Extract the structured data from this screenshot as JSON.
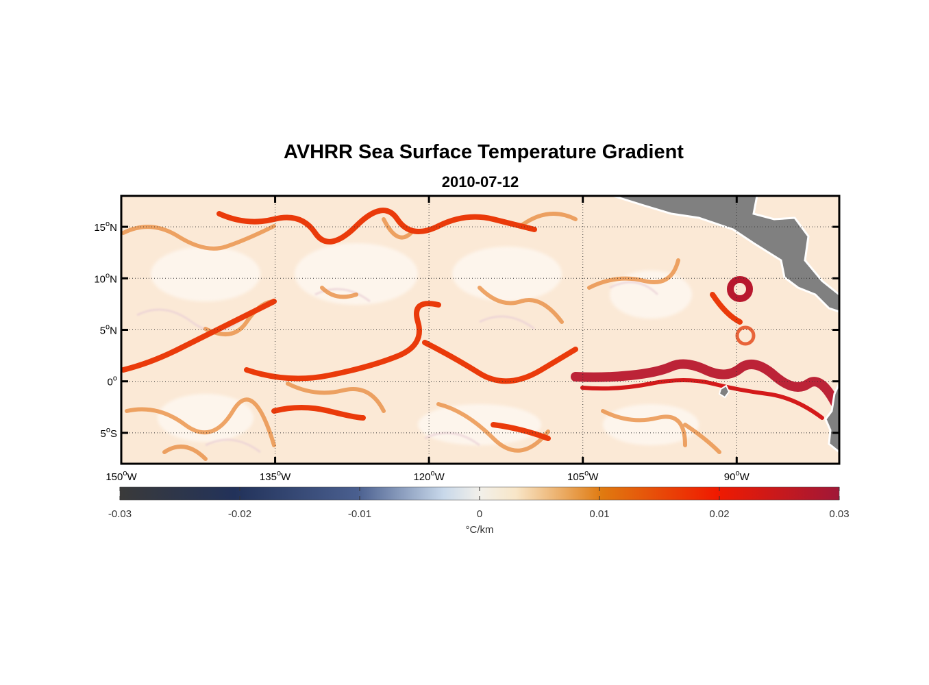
{
  "title": "AVHRR Sea Surface Temperature Gradient",
  "subtitle": "2010-07-12",
  "map": {
    "lon_range": [
      -150,
      -80
    ],
    "lat_range": [
      -8,
      18
    ],
    "lon_ticks": [
      {
        "value": -150,
        "num": "150",
        "hemi": "W"
      },
      {
        "value": -135,
        "num": "135",
        "hemi": "W"
      },
      {
        "value": -120,
        "num": "120",
        "hemi": "W"
      },
      {
        "value": -105,
        "num": "105",
        "hemi": "W"
      },
      {
        "value": -90,
        "num": "90",
        "hemi": "W"
      }
    ],
    "lat_ticks": [
      {
        "value": 15,
        "num": "15",
        "hemi": "N"
      },
      {
        "value": 10,
        "num": "10",
        "hemi": "N"
      },
      {
        "value": 5,
        "num": "5",
        "hemi": "N"
      },
      {
        "value": 0,
        "num": "0",
        "hemi": ""
      },
      {
        "value": -5,
        "num": "5",
        "hemi": "S"
      }
    ],
    "grid": "dotted",
    "land_color": "#808080",
    "background_color": "#fbe9d6"
  },
  "colorbar": {
    "range": [
      -0.03,
      0.03
    ],
    "tick_values": [
      -0.03,
      -0.02,
      -0.01,
      0,
      0.01,
      0.02,
      0.03
    ],
    "tick_labels": [
      "-0.03",
      "-0.02",
      "-0.01",
      "0",
      "0.01",
      "0.02",
      "0.03"
    ],
    "unit_label": "°C/km",
    "colors": [
      "#3a3a3a",
      "#22325a",
      "#4a5f8f",
      "#c8d8ea",
      "#f8e6c8",
      "#e07a10",
      "#f01a00",
      "#a01838"
    ]
  }
}
